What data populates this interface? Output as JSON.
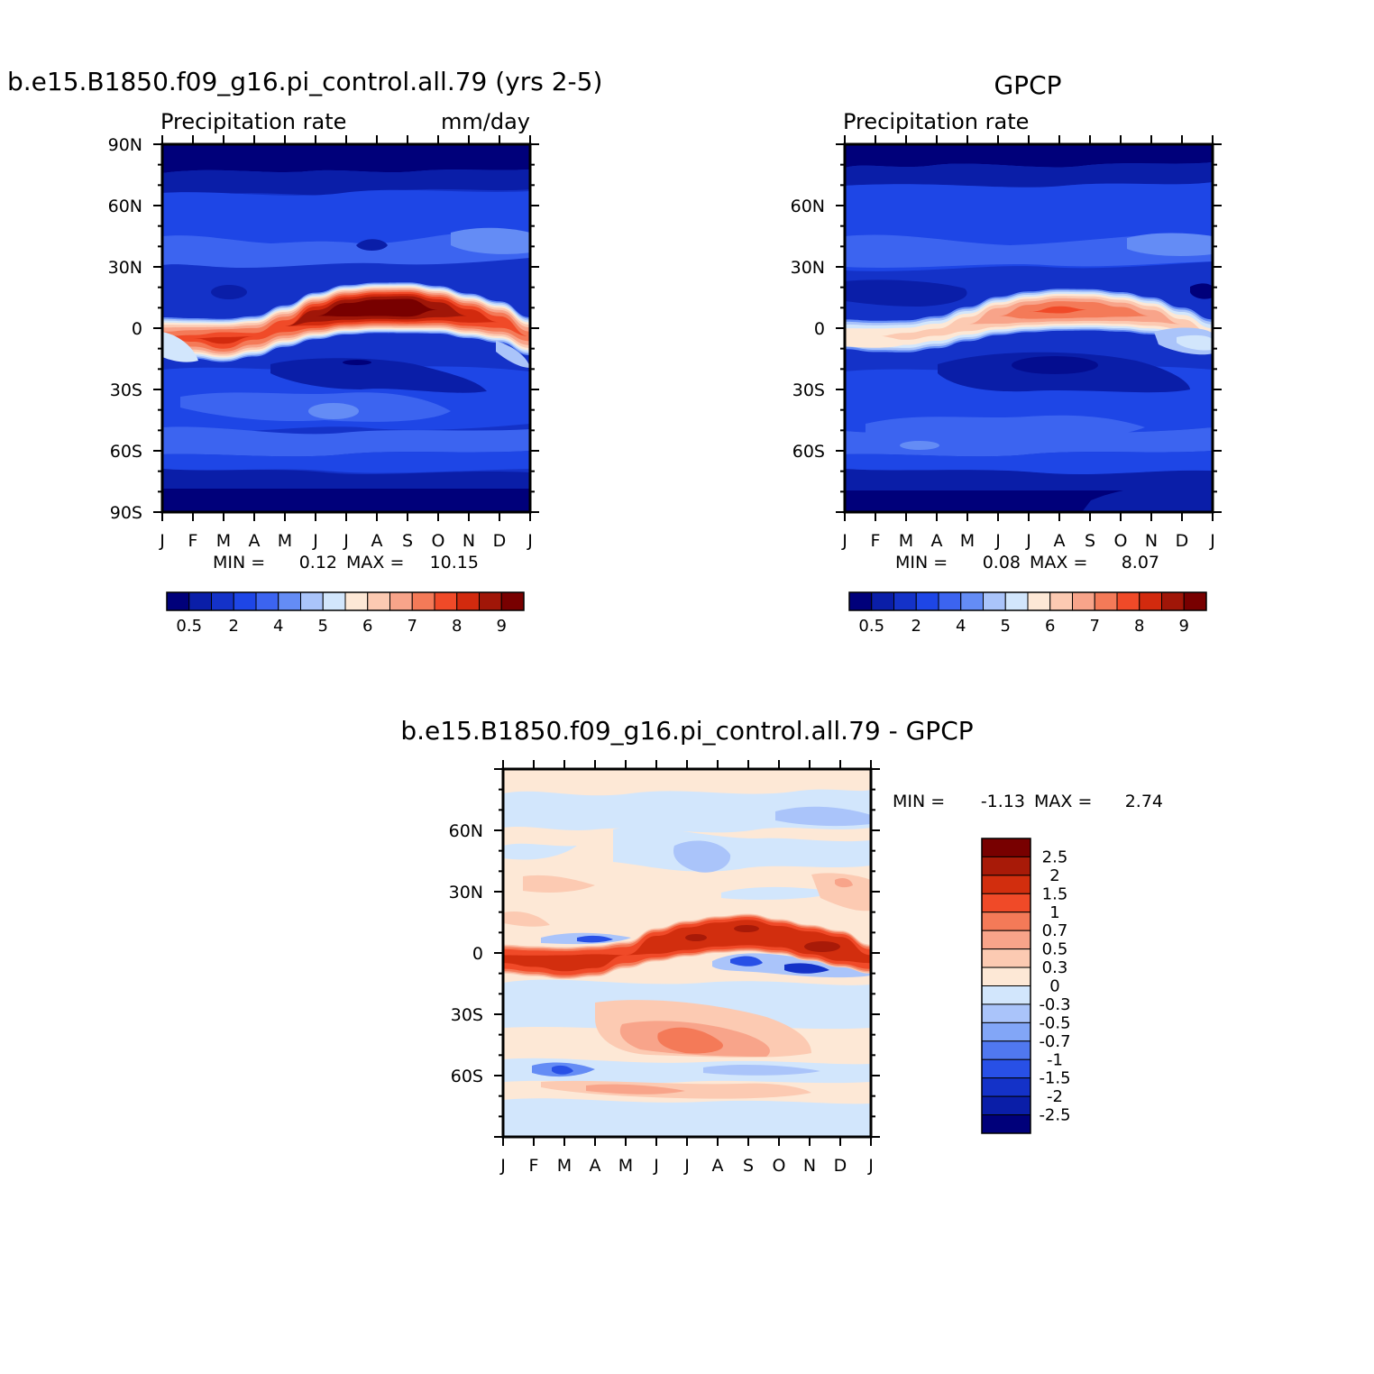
{
  "colors": {
    "abs_levels": [
      "#00007a",
      "#0a1ea8",
      "#1432c8",
      "#1e46e6",
      "#3c64f0",
      "#648cf5",
      "#aac4fa",
      "#d2e6fc",
      "#fde8d6",
      "#fccab2",
      "#f8a48a",
      "#f47a58",
      "#f04a28",
      "#d22a0e",
      "#a01608",
      "#780000"
    ],
    "diff_levels": [
      "#780000",
      "#a81a08",
      "#d22e0e",
      "#f04a28",
      "#f47a58",
      "#f8a48a",
      "#fccab2",
      "#fde8d6",
      "#d2e6fc",
      "#aac4fa",
      "#82a6f7",
      "#5078f0",
      "#2850e6",
      "#1432c8",
      "#0a1ea8",
      "#00007a"
    ]
  },
  "panels": [
    {
      "id": "model",
      "title": "b.e15.B1850.f09_g16.pi_control.all.79 (yrs 2-5)",
      "left_string": "Precipitation rate",
      "right_string": "mm/day",
      "stats": {
        "min_label": "MIN =",
        "min": "0.12",
        "max_label": "MAX =",
        "max": "10.15"
      },
      "y_ticks": [
        "90N",
        "60N",
        "30N",
        "0",
        "30S",
        "60S",
        "90S"
      ],
      "x_ticks": [
        "J",
        "F",
        "M",
        "A",
        "M",
        "J",
        "J",
        "A",
        "S",
        "O",
        "N",
        "D",
        "J"
      ],
      "colorbar_labels": [
        "0.5",
        "2",
        "4",
        "5",
        "6",
        "7",
        "8",
        "9"
      ]
    },
    {
      "id": "obs",
      "title": "GPCP",
      "left_string": "Precipitation rate",
      "right_string": "",
      "stats": {
        "min_label": "MIN =",
        "min": "0.08",
        "max_label": "MAX =",
        "max": "8.07"
      },
      "y_ticks": [
        "60N",
        "30N",
        "0",
        "30S",
        "60S"
      ],
      "x_ticks": [
        "J",
        "F",
        "M",
        "A",
        "M",
        "J",
        "J",
        "A",
        "S",
        "O",
        "N",
        "D",
        "J"
      ],
      "colorbar_labels": [
        "0.5",
        "2",
        "4",
        "5",
        "6",
        "7",
        "8",
        "9"
      ]
    },
    {
      "id": "diff",
      "title": "b.e15.B1850.f09_g16.pi_control.all.79 - GPCP",
      "left_string": "",
      "right_string": "",
      "stats": {
        "min_label": "MIN =",
        "min": "-1.13",
        "max_label": "MAX =",
        "max": "2.74"
      },
      "y_ticks": [
        "60N",
        "30N",
        "0",
        "30S",
        "60S"
      ],
      "x_ticks": [
        "J",
        "F",
        "M",
        "A",
        "M",
        "J",
        "J",
        "A",
        "S",
        "O",
        "N",
        "D",
        "J"
      ],
      "colorbar_labels": [
        "2.5",
        "2",
        "1.5",
        "1",
        "0.7",
        "0.5",
        "0.3",
        "0",
        "-0.3",
        "-0.5",
        "-0.7",
        "-1",
        "-1.5",
        "-2",
        "-2.5"
      ]
    }
  ],
  "chart_data": [
    {
      "type": "heatmap",
      "title": "b.e15.B1850.f09_g16.pi_control.all.79 (yrs 2-5)",
      "subtitle": "Precipitation rate",
      "units": "mm/day",
      "x": [
        "J",
        "F",
        "M",
        "A",
        "M",
        "J",
        "J",
        "A",
        "S",
        "O",
        "N",
        "D",
        "J"
      ],
      "y": [
        "90N",
        "60N",
        "30N",
        "0",
        "30S",
        "60S",
        "90S"
      ],
      "ylim": [
        -90,
        90
      ],
      "levels": [
        0.5,
        1,
        2,
        3,
        4,
        4.5,
        5,
        5.5,
        6,
        6.5,
        7,
        7.5,
        8,
        8.5,
        9
      ],
      "min": 0.12,
      "max": 10.15,
      "itcz_peak_lat": [
        -4,
        -5,
        -6,
        -4,
        1,
        6,
        9,
        10,
        10,
        9,
        6,
        3,
        -4
      ],
      "itcz_peak_value": [
        7.2,
        7.6,
        8.1,
        7.6,
        7.8,
        8.8,
        9.4,
        9.6,
        9.7,
        9.0,
        8.4,
        7.8,
        7.2
      ]
    },
    {
      "type": "heatmap",
      "title": "GPCP",
      "subtitle": "Precipitation rate",
      "x": [
        "J",
        "F",
        "M",
        "A",
        "M",
        "J",
        "J",
        "A",
        "S",
        "O",
        "N",
        "D",
        "J"
      ],
      "y": [
        "60N",
        "30N",
        "0",
        "30S",
        "60S"
      ],
      "ylim": [
        -90,
        90
      ],
      "levels": [
        0.5,
        1,
        2,
        3,
        4,
        4.5,
        5,
        5.5,
        6,
        6.5,
        7,
        7.5,
        8,
        8.5,
        9
      ],
      "min": 0.08,
      "max": 8.07,
      "itcz_peak_lat": [
        -3,
        -4,
        -4,
        -2,
        2,
        6,
        8,
        9,
        9,
        8,
        6,
        2,
        -3
      ],
      "itcz_peak_value": [
        5.8,
        6.0,
        6.1,
        6.1,
        6.4,
        7.0,
        7.4,
        7.6,
        7.5,
        7.2,
        6.8,
        6.2,
        5.8
      ]
    },
    {
      "type": "heatmap",
      "title": "b.e15.B1850.f09_g16.pi_control.all.79 - GPCP",
      "x": [
        "J",
        "F",
        "M",
        "A",
        "M",
        "J",
        "J",
        "A",
        "S",
        "O",
        "N",
        "D",
        "J"
      ],
      "y": [
        "60N",
        "30N",
        "0",
        "30S",
        "60S"
      ],
      "ylim": [
        -90,
        90
      ],
      "levels": [
        -2.5,
        -2,
        -1.5,
        -1,
        -0.7,
        -0.5,
        -0.3,
        0,
        0.3,
        0.5,
        0.7,
        1,
        1.5,
        2,
        2.5
      ],
      "min": -1.13,
      "max": 2.74
    }
  ]
}
